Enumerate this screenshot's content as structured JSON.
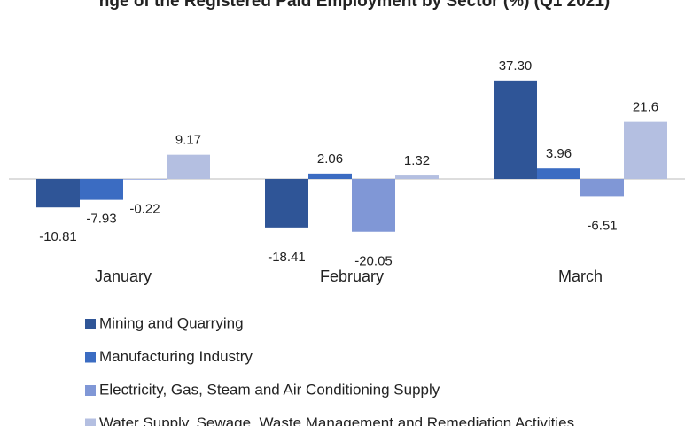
{
  "chart_data": {
    "type": "bar",
    "title": "nge of the Registered Paid Employment by Sector (%) (Q1 2021)",
    "categories": [
      "January",
      "February",
      "March"
    ],
    "series": [
      {
        "name": "Mining and Quarrying",
        "color": "#2f5597",
        "values": [
          -10.81,
          -18.41,
          37.3
        ],
        "value_labels": [
          "-10.81",
          "-18.41",
          "37.30"
        ]
      },
      {
        "name": "Manufacturing Industry",
        "color": "#3b6cc2",
        "values": [
          -7.93,
          2.06,
          3.96
        ],
        "value_labels": [
          "-7.93",
          "2.06",
          "3.96"
        ]
      },
      {
        "name": "Electricity, Gas, Steam and Air Conditioning Supply",
        "color": "#8097d6",
        "values": [
          -0.22,
          -20.05,
          -6.51
        ],
        "value_labels": [
          "-0.22",
          "-20.05",
          "-6.51"
        ]
      },
      {
        "name": "Water Supply, Sewage, Waste Management and Remediation Activities",
        "color": "#b4bfe1",
        "values": [
          9.17,
          1.32,
          21.6
        ],
        "value_labels": [
          "9.17",
          "1.32",
          "21.6"
        ]
      }
    ]
  }
}
